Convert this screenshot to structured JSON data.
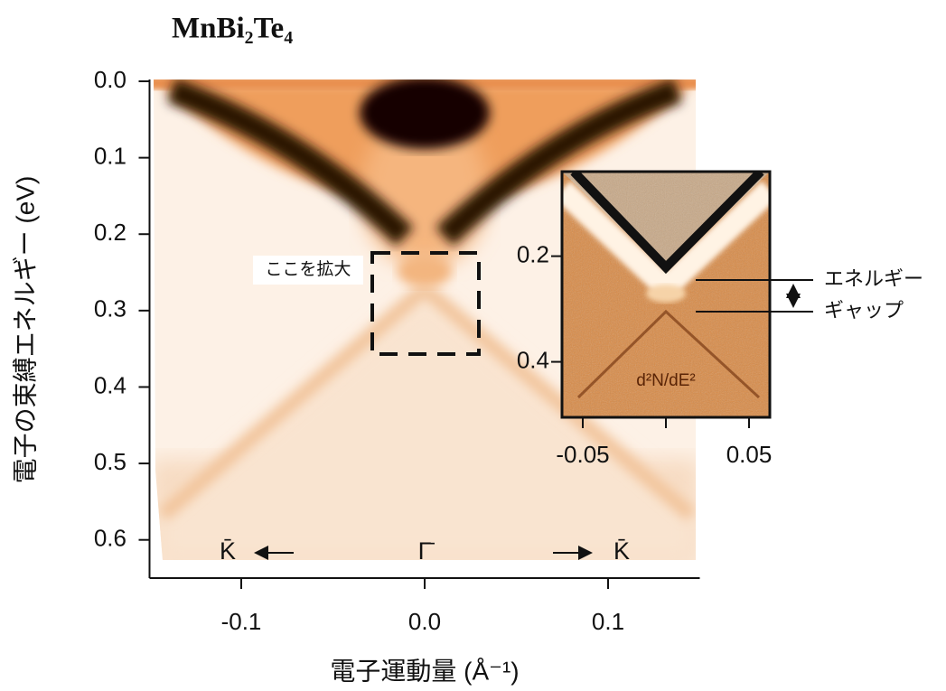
{
  "chart_data": [
    {
      "type": "image",
      "title": "MnBi₂Te₄",
      "xlabel": "電子運動量 (Å⁻¹)",
      "ylabel": "電子の束縛エネルギー (eV)",
      "xlim": [
        -0.15,
        0.15
      ],
      "ylim": [
        0,
        0.65
      ],
      "xticks": [
        -0.1,
        {
          "value": 0,
          "label": "0.0"
        },
        0.1
      ],
      "yticks": [
        {
          "value": 0,
          "label": "0.0"
        },
        0.1,
        0.2,
        0.3,
        0.4,
        0.5,
        0.6
      ],
      "annotations": [
        "ここを拡大",
        "エネルギー",
        "ギャップ",
        "K̄",
        "Γ̄",
        "K̄"
      ]
    },
    {
      "type": "image",
      "title": "d²N/dE²",
      "xlim": [
        -0.0625,
        0.0625
      ],
      "ylim": [
        0.04,
        0.505
      ],
      "xticks": [
        -0.05,
        0.05
      ],
      "yticks": [
        0.2,
        0.4
      ]
    }
  ]
}
